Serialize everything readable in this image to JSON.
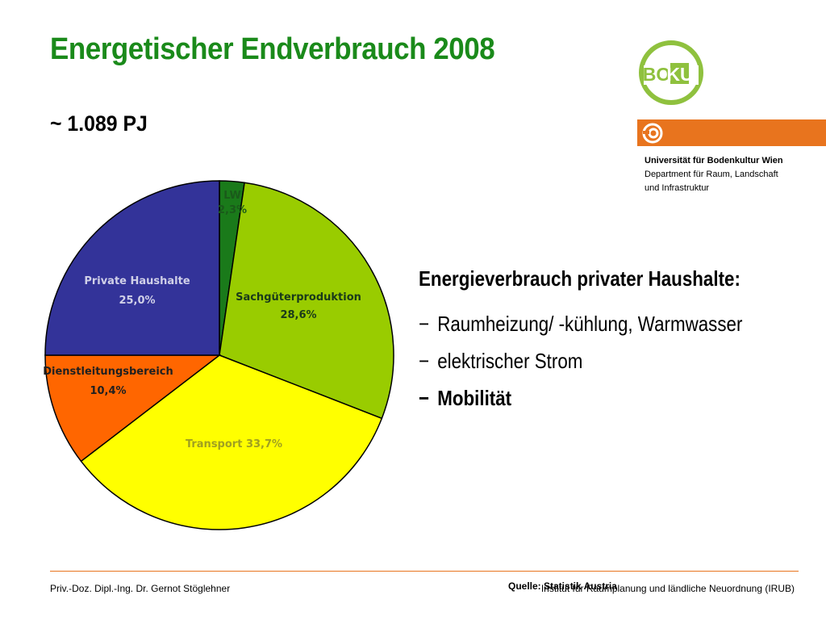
{
  "slide": {
    "title": "Energetischer Endverbrauch 2008",
    "subtitle": "~ 1.089 PJ"
  },
  "branding": {
    "logo_text": "BOKU",
    "university": "Universität für Bodenkultur Wien",
    "department_line1": "Department für Raum, Landschaft",
    "department_line2": "und Infrastruktur",
    "colors": {
      "green": "#8fc13e",
      "orange": "#e8741e",
      "title_green": "#1a8a1a"
    }
  },
  "chart_data": {
    "type": "pie",
    "categories": [
      "LW",
      "Sachgüterproduktion",
      "Transport",
      "Dienstleitungsbereich",
      "Private Haushalte"
    ],
    "values": [
      2.3,
      28.6,
      33.7,
      10.4,
      25.0
    ],
    "labels": [
      {
        "name": "LW",
        "value": "2,3%",
        "color": "#1a7a1a",
        "label_color": "#1a5a1a"
      },
      {
        "name": "Sachgüterproduktion",
        "value": "28,6%",
        "color": "#99cc00",
        "label_color": "#1a3a1a"
      },
      {
        "name": "Transport",
        "value": "33,7%",
        "color": "#ffff00",
        "label_color": "#a0a020"
      },
      {
        "name": "Dienstleitungsbereich",
        "value": "10,4%",
        "color": "#ff6600",
        "label_color": "#202020"
      },
      {
        "name": "Private Haushalte",
        "value": "25,0%",
        "color": "#333399",
        "label_color": "#d0d0e8"
      }
    ],
    "title": "",
    "legend": "none"
  },
  "bullets": {
    "heading": "Energieverbrauch privater Haushalte:",
    "items": [
      {
        "text": "Raumheizung/ -kühlung, Warmwasser",
        "bold": false
      },
      {
        "text": "elektrischer Strom",
        "bold": false
      },
      {
        "text": "Mobilität",
        "bold": true
      }
    ],
    "dash": "−"
  },
  "footer": {
    "author": "Priv.-Doz. Dipl.-Ing. Dr. Gernot Stöglehner",
    "institute": "Institut für Raumplanung und ländliche Neuordnung (IRUB)",
    "source": "Quelle: Statistik Austria"
  }
}
